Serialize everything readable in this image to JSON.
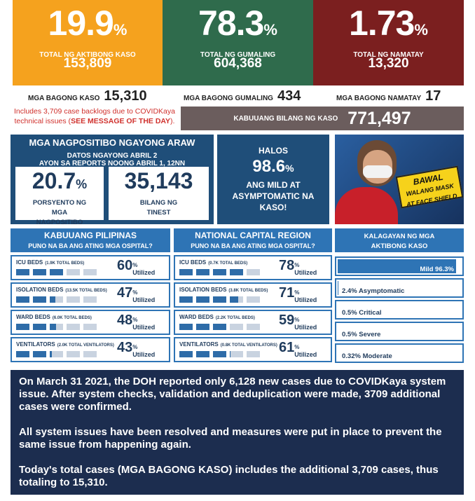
{
  "headline": [
    {
      "percent": "19.9",
      "unit": "%",
      "label": "TOTAL NG AKTIBONG KASO",
      "count": "153,809",
      "color": "#f5a21e"
    },
    {
      "percent": "78.3",
      "unit": "%",
      "label": "TOTAL NG GUMALING",
      "count": "604,368",
      "color": "#2f6b4c"
    },
    {
      "percent": "1.73",
      "unit": "%",
      "label": "TOTAL NG NAMATAY",
      "count": "13,320",
      "color": "#7b1f1f"
    }
  ],
  "new_counts": {
    "cases_label": "MGA BAGONG KASO",
    "cases": "15,310",
    "note_prefix": "Includes 3,709 case backlogs due to COVIDKaya technical issues (",
    "note_link": "SEE MESSAGE OF THE DAY",
    "note_suffix": ").",
    "recovered_label": "MGA BAGONG GUMALING",
    "recovered": "434",
    "deaths_label": "MGA BAGONG NAMATAY",
    "deaths": "17",
    "total_label": "KABUUANG BILANG NG KASO",
    "total": "771,497"
  },
  "positivity": {
    "title": "MGA NAGPOSITIBO NGAYONG ARAW",
    "subtitle1": "DATOS NGAYONG ABRIL 2",
    "subtitle2": "AYON SA REPORTS NOONG ABRIL 1, 12NN",
    "rate": "20.7",
    "rate_unit": "%",
    "rate_label": "PORSYENTO NG MGA NAGPOSITIBO",
    "tested": "35,143",
    "tested_label": "BILANG NG TINEST"
  },
  "mild": {
    "lead": "HALOS",
    "value": "98.6",
    "unit": "%",
    "text": "ANG MILD AT ASYMPTOMATIC NA KASO!"
  },
  "poster": {
    "line1": "BAWAL",
    "line2": "WALANG MASK",
    "line3": "AT FACE SHIELD"
  },
  "hospitals": [
    {
      "title": "KABUUANG PILIPINAS",
      "subtitle": "PUNO NA BA ANG ATING MGA OSPITAL?",
      "rows": [
        {
          "name": "ICU BEDS",
          "total": "(1.9K TOTAL BEDS)",
          "utilization": 60,
          "unit": "%",
          "label": "Utilized"
        },
        {
          "name": "ISOLATION BEDS",
          "total": "(13.5K TOTAL BEDS)",
          "utilization": 47,
          "unit": "%",
          "label": "Utilized"
        },
        {
          "name": "WARD BEDS",
          "total": "(6.0K TOTAL BEDS)",
          "utilization": 48,
          "unit": "%",
          "label": "Utilized"
        },
        {
          "name": "VENTILATORS",
          "total": "(2.0K TOTAL VENTILATORS)",
          "utilization": 43,
          "unit": "%",
          "label": "Utilized"
        }
      ]
    },
    {
      "title": "NATIONAL CAPITAL REGION",
      "subtitle": "PUNO NA BA ANG ATING MGA OSPITAL?",
      "rows": [
        {
          "name": "ICU BEDS",
          "total": "(0.7K TOTAL BEDS)",
          "utilization": 78,
          "unit": "%",
          "label": "Utilized"
        },
        {
          "name": "ISOLATION BEDS",
          "total": "(3.8K TOTAL BEDS)",
          "utilization": 71,
          "unit": "%",
          "label": "Utilized"
        },
        {
          "name": "WARD BEDS",
          "total": "(2.2K TOTAL BEDS)",
          "utilization": 59,
          "unit": "%",
          "label": "Utilized"
        },
        {
          "name": "VENTILATORS",
          "total": "(0.8K TOTAL VENTILATORS)",
          "utilization": 61,
          "unit": "%",
          "label": "Utilized"
        }
      ]
    }
  ],
  "case_status": {
    "title": "KALAGAYAN NG MGA AKTIBONG KASO",
    "items": [
      {
        "label": "Mild 96.3%",
        "value": 96.3
      },
      {
        "label": "2.4% Asymptomatic",
        "value": 2.4
      },
      {
        "label": "0.5% Critical",
        "value": 0.5
      },
      {
        "label": "0.5% Severe",
        "value": 0.5
      },
      {
        "label": "0.32% Moderate",
        "value": 0.32
      }
    ]
  },
  "message": [
    "On March 31 2021, the DOH reported only 6,128 new cases due to COVIDKaya system issue. After system checks, validation and deduplication were made, 3709 additional cases were confirmed.",
    "All system issues have been resolved and measures were put in place to prevent the same issue from happening again.",
    "Today's total cases (MGA BAGONG KASO) includes the additional 3,709 cases, thus totaling to 15,310."
  ]
}
